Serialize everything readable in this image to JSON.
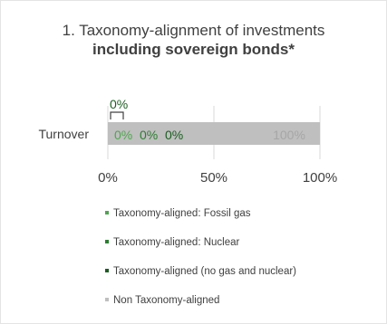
{
  "title": {
    "line1": "1. Taxonomy-alignment of investments",
    "line2": "including sovereign bonds*"
  },
  "chart_data": {
    "type": "bar",
    "orientation": "horizontal",
    "stacked": true,
    "categories": [
      "Turnover"
    ],
    "series": [
      {
        "name": "Taxonomy-aligned: Fossil gas",
        "values": [
          0
        ],
        "label": "0%",
        "color": "#4ea64e"
      },
      {
        "name": "Taxonomy-aligned: Nuclear",
        "values": [
          0
        ],
        "label": "0%",
        "color": "#2e7d32"
      },
      {
        "name": "Taxonomy-aligned (no gas and nuclear)",
        "values": [
          0
        ],
        "label": "0%",
        "color": "#1b5e20"
      },
      {
        "name": "Non Taxonomy-aligned",
        "values": [
          100
        ],
        "label": "100%",
        "color": "#bfbfbf"
      }
    ],
    "callout_label": "0%",
    "xlim": [
      0,
      100
    ],
    "x_ticks": [
      "0%",
      "50%",
      "100%"
    ],
    "x_tick_values": [
      0,
      50,
      100
    ],
    "gridlines": true,
    "legend_position": "bottom"
  },
  "colors": {
    "text": "#404040",
    "grid": "#d9d9d9",
    "non_aligned_label": "#a6a6a6",
    "callout_text": "#1b5e20",
    "callout_bracket": "#404040"
  },
  "legend": [
    {
      "label": "Taxonomy-aligned: Fossil gas",
      "color": "#4ea64e"
    },
    {
      "label": "Taxonomy-aligned: Nuclear",
      "color": "#2e7d32"
    },
    {
      "label": "Taxonomy-aligned (no gas and nuclear)",
      "color": "#1b5e20"
    },
    {
      "label": "Non Taxonomy-aligned",
      "color": "#bfbfbf"
    }
  ]
}
